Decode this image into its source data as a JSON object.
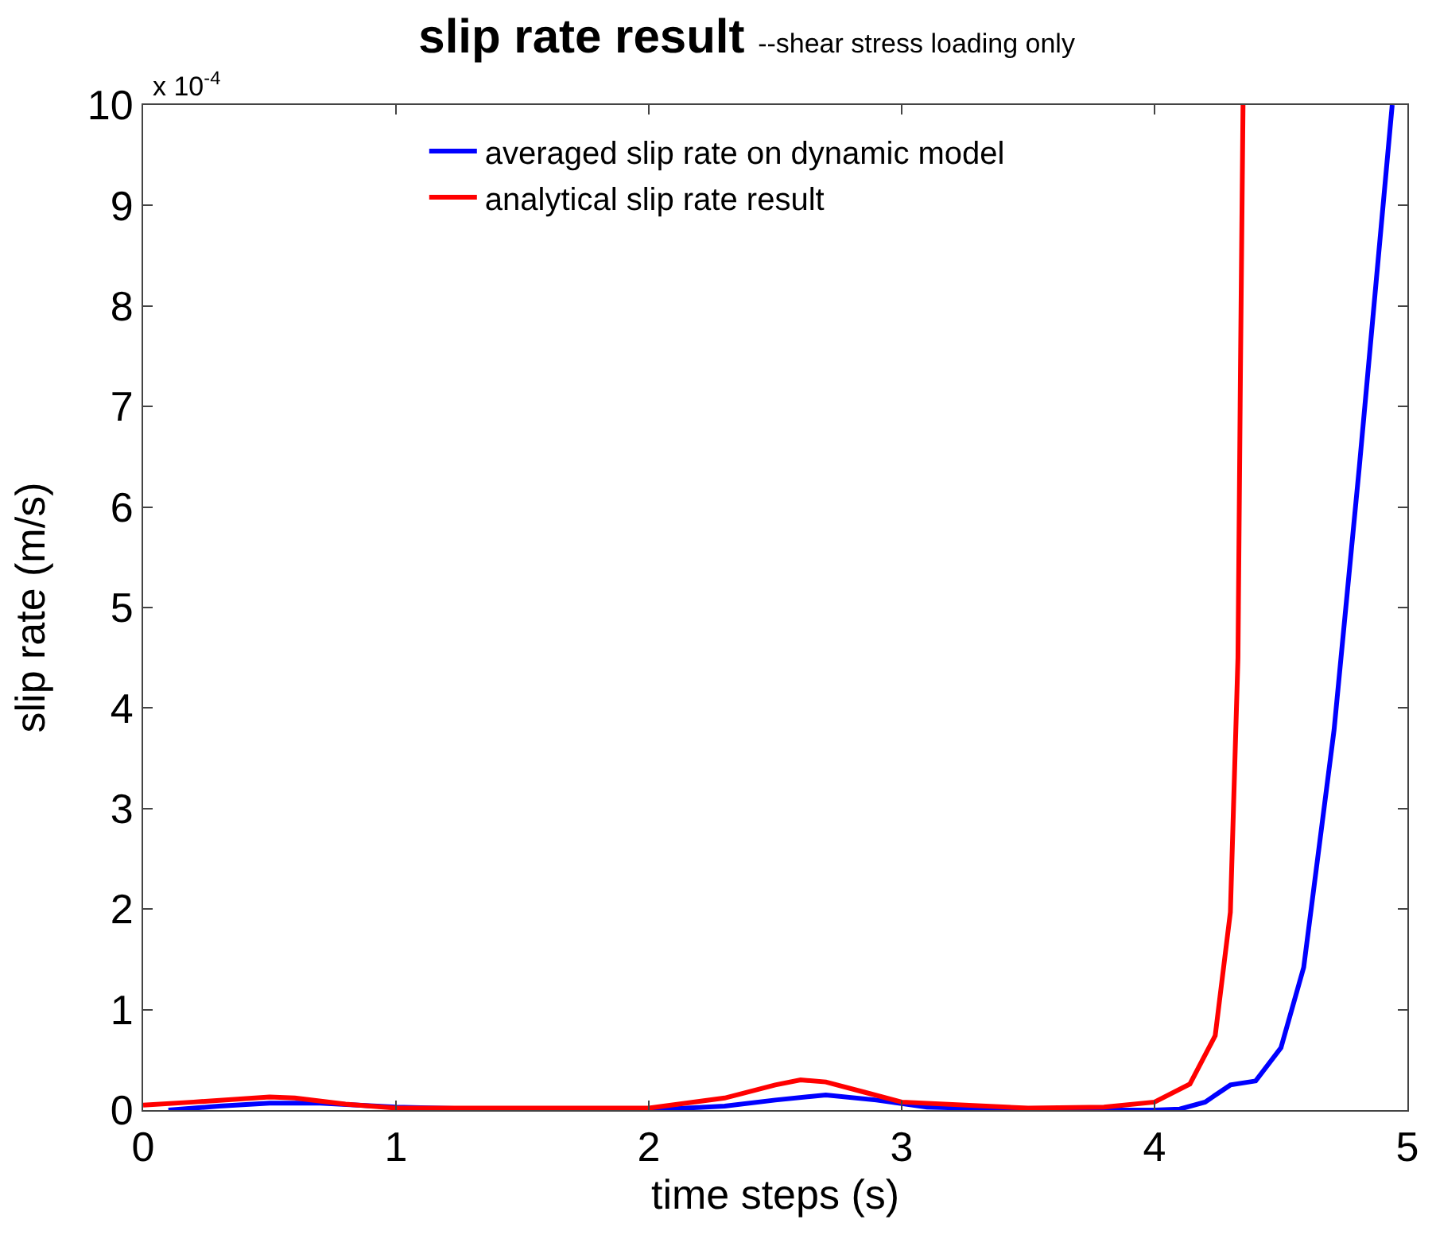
{
  "chart_data": {
    "type": "line",
    "title": "slip rate result",
    "subtitle": "--shear stress loading only",
    "xlabel": "time steps (s)",
    "ylabel": "slip rate (m/s)",
    "annotations": [
      "x 10$^{-4}$"
    ],
    "xlim": [
      0,
      5
    ],
    "xticks": [
      0,
      1,
      2,
      3,
      4,
      5
    ],
    "ylim": [
      0,
      10
    ],
    "yticks": [
      0,
      1,
      2,
      3,
      4,
      5,
      6,
      7,
      8,
      9,
      10
    ],
    "grid": false,
    "legend": "top",
    "marker": "none",
    "line_style": "solid",
    "series": [
      {
        "name": "averaged slip rate on dynamic model",
        "color": "#0000ff",
        "x": [
          0.1,
          0.3,
          0.5,
          0.7,
          1.0,
          1.5,
          2.0,
          2.3,
          2.5,
          2.7,
          2.9,
          3.1,
          3.5,
          4.0,
          4.1,
          4.2,
          4.3,
          4.4,
          4.5,
          4.59,
          4.71,
          4.81,
          4.94
        ],
        "values": [
          0,
          0.04,
          0.07,
          0.07,
          0.03,
          0,
          0,
          0.04,
          0.1,
          0.15,
          0.1,
          0.03,
          0,
          0,
          0.01,
          0.08,
          0.25,
          0.29,
          0.62,
          1.42,
          3.78,
          6.4,
          10
        ]
      },
      {
        "name": "analytical slip rate result",
        "color": "#ff0000",
        "x": [
          0,
          0.2,
          0.5,
          0.6,
          0.8,
          1.0,
          1.5,
          2.0,
          2.3,
          2.5,
          2.6,
          2.7,
          2.85,
          3.0,
          3.5,
          3.8,
          4.0,
          4.14,
          4.24,
          4.3,
          4.33,
          4.34,
          4.35
        ],
        "values": [
          0.05,
          0.08,
          0.13,
          0.12,
          0.06,
          0.02,
          0.02,
          0.02,
          0.12,
          0.25,
          0.3,
          0.28,
          0.18,
          0.08,
          0.02,
          0.03,
          0.08,
          0.26,
          0.74,
          1.97,
          4.5,
          7.4,
          10
        ]
      }
    ]
  }
}
